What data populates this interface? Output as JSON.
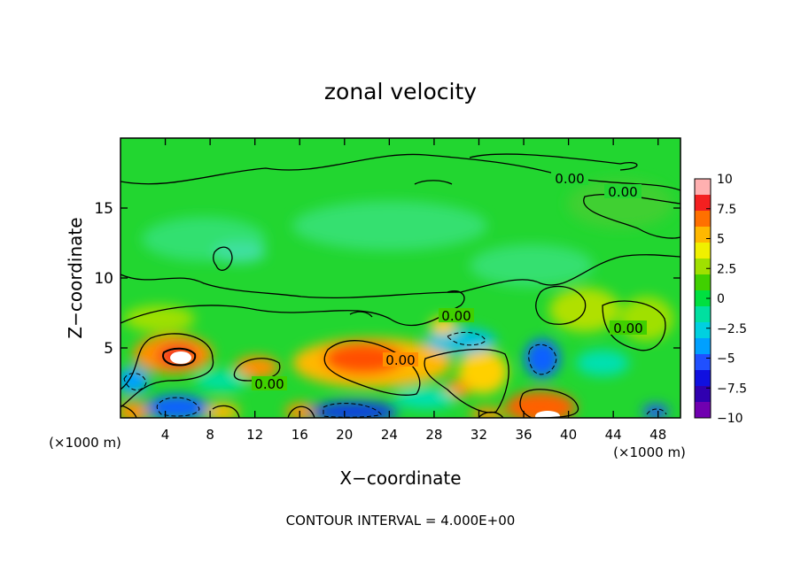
{
  "chart_data": {
    "type": "heatmap",
    "title": "zonal velocity",
    "xlabel": "X−coordinate",
    "ylabel": "Z−coordinate",
    "x_unit_left": "(×1000 m)",
    "x_unit_right": "(×1000 m)",
    "x_ticks": [
      "4",
      "8",
      "12",
      "16",
      "20",
      "24",
      "28",
      "32",
      "36",
      "40",
      "44",
      "48"
    ],
    "y_ticks": [
      "5",
      "10",
      "15"
    ],
    "xlim": [
      0,
      50
    ],
    "ylim": [
      0,
      20
    ],
    "colorbar": {
      "labels": [
        "10",
        "7.5",
        "5",
        "2.5",
        "0",
        "−2.5",
        "−5",
        "−7.5",
        "−10"
      ],
      "colors": [
        "#ffb0b0",
        "#f42020",
        "#ff7000",
        "#ffb800",
        "#f0f000",
        "#a0e000",
        "#40d000",
        "#00e040",
        "#00e0a0",
        "#00d0e0",
        "#00a0ff",
        "#2050ff",
        "#1010e0",
        "#3000b0",
        "#7000b0"
      ]
    },
    "contour_labels": [
      "0.00",
      "0.00",
      "0.00",
      "0.00",
      "0.00",
      "0.00"
    ],
    "footer": "CONTOUR INTERVAL =  4.000E+00"
  }
}
